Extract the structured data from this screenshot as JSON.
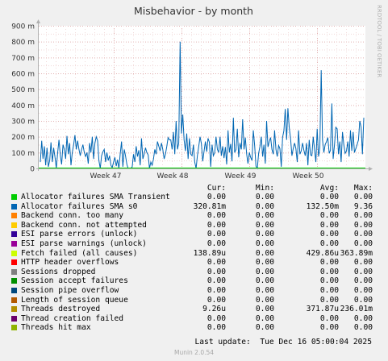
{
  "chart_data": {
    "type": "line",
    "title": "Misbehavior - by month",
    "side_label": "RRDTOOL / TOBI OETIKER",
    "yticks": [
      "0",
      "100 m",
      "200 m",
      "300 m",
      "400 m",
      "500 m",
      "600 m",
      "700 m",
      "800 m",
      "900 m"
    ],
    "ylim": [
      0,
      900
    ],
    "yunit": "m",
    "xticks": [
      "Week 47",
      "Week 48",
      "Week 49",
      "Week 50"
    ],
    "grid": true,
    "series": [
      {
        "name": "Allocator failures SMA s0",
        "color": "#0066b3",
        "values": [
          40,
          175,
          60,
          140,
          20,
          130,
          10,
          50,
          165,
          40,
          130,
          70,
          0,
          100,
          180,
          80,
          25,
          150,
          120,
          60,
          205,
          90,
          160,
          20,
          100,
          150,
          210,
          120,
          175,
          120,
          80,
          120,
          150,
          100,
          75,
          100,
          30,
          160,
          100,
          200,
          60,
          160,
          200,
          175,
          50,
          0,
          80,
          105,
          120,
          40,
          100,
          50,
          80,
          20,
          5,
          40,
          70,
          15,
          55,
          0,
          90,
          170,
          10,
          120,
          80,
          25,
          0,
          0,
          0,
          10,
          90,
          40,
          140,
          75,
          115,
          20,
          190,
          60,
          90,
          130,
          100,
          85,
          0,
          40,
          20,
          60,
          120,
          90,
          170,
          140,
          110,
          160,
          120,
          60,
          90,
          140,
          195,
          180,
          180,
          120,
          230,
          90,
          300,
          120,
          160,
          800,
          220,
          340,
          180,
          110,
          220,
          60,
          190,
          90,
          80,
          150,
          40,
          0,
          80,
          140,
          200,
          155,
          45,
          110,
          170,
          105,
          190,
          165,
          10,
          150,
          80,
          100,
          200,
          120,
          100,
          200,
          80,
          140,
          65,
          135,
          25,
          240,
          100,
          155,
          45,
          320,
          100,
          120,
          250,
          70,
          160,
          120,
          310,
          120,
          195,
          90,
          30,
          100,
          70,
          50,
          240,
          145,
          15,
          0,
          95,
          140,
          200,
          75,
          150,
          30,
          300,
          135,
          170,
          195,
          120,
          90,
          240,
          120,
          75,
          145,
          125,
          10,
          195,
          240,
          375,
          180,
          380,
          255,
          190,
          80,
          125,
          160,
          125,
          40,
          240,
          90,
          110,
          160,
          115,
          80,
          160,
          20,
          180,
          85,
          80,
          200,
          120,
          40,
          250,
          75,
          130,
          620,
          180,
          100,
          150,
          170,
          195,
          95,
          115,
          410,
          60,
          150,
          260,
          250,
          90,
          170,
          40,
          230,
          150,
          95,
          110,
          170,
          75,
          240,
          110,
          230,
          100,
          125,
          150,
          180,
          300,
          260,
          90,
          320
        ]
      }
    ],
    "legend_columns": [
      "Cur:",
      "Min:",
      "Avg:",
      "Max:"
    ],
    "legend": [
      {
        "name": "Allocator failures SMA Transient",
        "color": "#00cc00",
        "cur": "0.00",
        "min": "0.00",
        "avg": "0.00",
        "max": "0.00"
      },
      {
        "name": "Allocator failures SMA s0",
        "color": "#0066b3",
        "cur": "320.81m",
        "min": "0.00",
        "avg": "132.50m",
        "max": "9.36"
      },
      {
        "name": "Backend conn. too many",
        "color": "#ff8000",
        "cur": "0.00",
        "min": "0.00",
        "avg": "0.00",
        "max": "0.00"
      },
      {
        "name": "Backend conn. not attempted",
        "color": "#ffcc00",
        "cur": "0.00",
        "min": "0.00",
        "avg": "0.00",
        "max": "0.00"
      },
      {
        "name": "ESI parse errors (unlock)",
        "color": "#330099",
        "cur": "0.00",
        "min": "0.00",
        "avg": "0.00",
        "max": "0.00"
      },
      {
        "name": "ESI parse warnings (unlock)",
        "color": "#990099",
        "cur": "0.00",
        "min": "0.00",
        "avg": "0.00",
        "max": "0.00"
      },
      {
        "name": "Fetch failed (all causes)",
        "color": "#ccff00",
        "cur": "138.89u",
        "min": "0.00",
        "avg": "429.86u",
        "max": "363.89m"
      },
      {
        "name": "HTTP header overflows",
        "color": "#ff0000",
        "cur": "0.00",
        "min": "0.00",
        "avg": "0.00",
        "max": "0.00"
      },
      {
        "name": "Sessions dropped",
        "color": "#808080",
        "cur": "0.00",
        "min": "0.00",
        "avg": "0.00",
        "max": "0.00"
      },
      {
        "name": "Session accept failures",
        "color": "#008f00",
        "cur": "0.00",
        "min": "0.00",
        "avg": "0.00",
        "max": "0.00"
      },
      {
        "name": "Session pipe overflow",
        "color": "#00487d",
        "cur": "0.00",
        "min": "0.00",
        "avg": "0.00",
        "max": "0.00"
      },
      {
        "name": "Length of session queue",
        "color": "#b35a00",
        "cur": "0.00",
        "min": "0.00",
        "avg": "0.00",
        "max": "0.00"
      },
      {
        "name": "Threads destroyed",
        "color": "#b38f00",
        "cur": "9.26u",
        "min": "0.00",
        "avg": "371.87u",
        "max": "236.01m"
      },
      {
        "name": "Thread creation failed",
        "color": "#6b006b",
        "cur": "0.00",
        "min": "0.00",
        "avg": "0.00",
        "max": "0.00"
      },
      {
        "name": "Threads hit max",
        "color": "#8fb300",
        "cur": "0.00",
        "min": "0.00",
        "avg": "0.00",
        "max": "0.00"
      }
    ]
  },
  "footer": {
    "last_update": "Last update:  Tue Dec 16 05:00:04 2025",
    "version": "Munin 2.0.54"
  }
}
